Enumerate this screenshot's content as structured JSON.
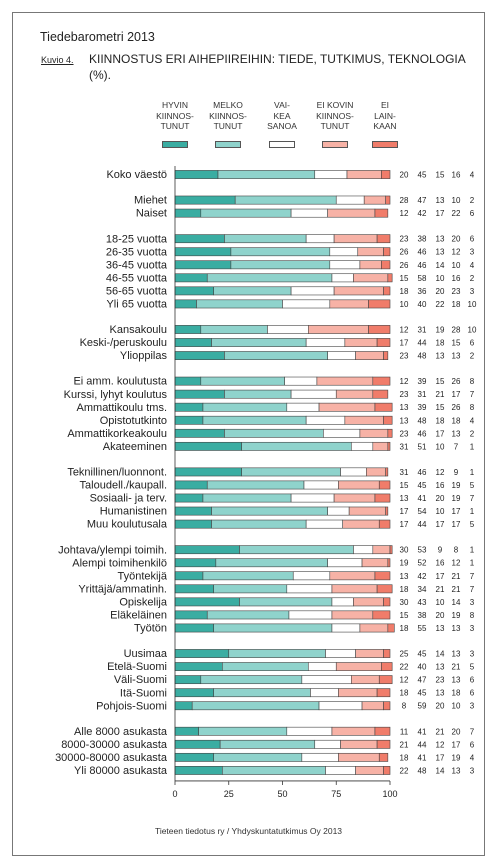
{
  "header": {
    "report_title": "Tiedebarometri 2013",
    "figure_label": "Kuvio 4.",
    "figure_title": "KIINNOSTUS ERI AIHEPIIREIHIN: TIEDE, TUTKIMUS, TEKNOLOGIA (%)."
  },
  "legend": [
    {
      "text": "HYVIN\nKIINNOS-\nTUNUT",
      "color": "#3aada2"
    },
    {
      "text": "MELKO\nKIINNOS-\nTUNUT",
      "color": "#8fd3cc"
    },
    {
      "text": "VAI-\nKEA\nSANOA",
      "color": "#ffffff"
    },
    {
      "text": "EI KOVIN\nKIINNOS-\nTUNUT",
      "color": "#f7b2a6"
    },
    {
      "text": "EI\nLAIN-\nKAAN",
      "color": "#f07c6a"
    }
  ],
  "source": "Tieteen tiedotus ry / Yhdyskuntatutkimus Oy 2013",
  "chart_data": {
    "type": "bar",
    "stacked": true,
    "orientation": "horizontal",
    "xlim": [
      0,
      100
    ],
    "xticks": [
      0,
      25,
      50,
      75,
      100
    ],
    "grid": false,
    "series_colors": [
      "#3aada2",
      "#8fd3cc",
      "#ffffff",
      "#f7b2a6",
      "#f07c6a"
    ],
    "groups": [
      {
        "rows": [
          {
            "label": "Koko väestö",
            "values": [
              20,
              45,
              15,
              16,
              4
            ]
          }
        ]
      },
      {
        "rows": [
          {
            "label": "Miehet",
            "values": [
              28,
              47,
              13,
              10,
              2
            ]
          },
          {
            "label": "Naiset",
            "values": [
              12,
              42,
              17,
              22,
              6
            ]
          }
        ]
      },
      {
        "rows": [
          {
            "label": "18-25 vuotta",
            "values": [
              23,
              38,
              13,
              20,
              6
            ]
          },
          {
            "label": "26-35 vuotta",
            "values": [
              26,
              46,
              13,
              12,
              3
            ]
          },
          {
            "label": "36-45 vuotta",
            "values": [
              26,
              46,
              14,
              10,
              4
            ]
          },
          {
            "label": "46-55 vuotta",
            "values": [
              15,
              58,
              10,
              16,
              2
            ]
          },
          {
            "label": "56-65 vuotta",
            "values": [
              18,
              36,
              20,
              23,
              3
            ]
          },
          {
            "label": "Yli 65 vuotta",
            "values": [
              10,
              40,
              22,
              18,
              10
            ]
          }
        ]
      },
      {
        "rows": [
          {
            "label": "Kansakoulu",
            "values": [
              12,
              31,
              19,
              28,
              10
            ]
          },
          {
            "label": "Keski-/peruskoulu",
            "values": [
              17,
              44,
              18,
              15,
              6
            ]
          },
          {
            "label": "Ylioppilas",
            "values": [
              23,
              48,
              13,
              13,
              2
            ]
          }
        ]
      },
      {
        "rows": [
          {
            "label": "Ei amm. koulutusta",
            "values": [
              12,
              39,
              15,
              26,
              8
            ]
          },
          {
            "label": "Kurssi, lyhyt koulutus",
            "values": [
              23,
              31,
              21,
              17,
              7
            ]
          },
          {
            "label": "Ammattikoulu tms.",
            "values": [
              13,
              39,
              15,
              26,
              8
            ]
          },
          {
            "label": "Opistotutkinto",
            "values": [
              13,
              48,
              18,
              18,
              4
            ]
          },
          {
            "label": "Ammattikorkeakoulu",
            "values": [
              23,
              46,
              17,
              13,
              2
            ]
          },
          {
            "label": "Akateeminen",
            "values": [
              31,
              51,
              10,
              7,
              1
            ]
          }
        ]
      },
      {
        "rows": [
          {
            "label": "Teknillinen/luonnont.",
            "values": [
              31,
              46,
              12,
              9,
              1
            ]
          },
          {
            "label": "Taloudell./kaupall.",
            "values": [
              15,
              45,
              16,
              19,
              5
            ]
          },
          {
            "label": "Sosiaali- ja terv.",
            "values": [
              13,
              41,
              20,
              19,
              7
            ]
          },
          {
            "label": "Humanistinen",
            "values": [
              17,
              54,
              10,
              17,
              1
            ]
          },
          {
            "label": "Muu koulutusala",
            "values": [
              17,
              44,
              17,
              17,
              5
            ]
          }
        ]
      },
      {
        "rows": [
          {
            "label": "Johtava/ylempi toimih.",
            "values": [
              30,
              53,
              9,
              8,
              1
            ]
          },
          {
            "label": "Alempi toimihenkilö",
            "values": [
              19,
              52,
              16,
              12,
              1
            ]
          },
          {
            "label": "Työntekijä",
            "values": [
              13,
              42,
              17,
              21,
              7
            ]
          },
          {
            "label": "Yrittäjä/ammatinh.",
            "values": [
              18,
              34,
              21,
              21,
              7
            ]
          },
          {
            "label": "Opiskelija",
            "values": [
              30,
              43,
              10,
              14,
              3
            ]
          },
          {
            "label": "Eläkeläinen",
            "values": [
              15,
              38,
              20,
              19,
              8
            ]
          },
          {
            "label": "Työtön",
            "values": [
              18,
              55,
              13,
              13,
              3
            ]
          }
        ]
      },
      {
        "rows": [
          {
            "label": "Uusimaa",
            "values": [
              25,
              45,
              14,
              13,
              3
            ]
          },
          {
            "label": "Etelä-Suomi",
            "values": [
              22,
              40,
              13,
              21,
              5
            ]
          },
          {
            "label": "Väli-Suomi",
            "values": [
              12,
              47,
              23,
              13,
              6
            ]
          },
          {
            "label": "Itä-Suomi",
            "values": [
              18,
              45,
              13,
              18,
              6
            ]
          },
          {
            "label": "Pohjois-Suomi",
            "values": [
              8,
              59,
              20,
              10,
              3
            ]
          }
        ]
      },
      {
        "rows": [
          {
            "label": "Alle 8000 asukasta",
            "values": [
              11,
              41,
              21,
              20,
              7
            ]
          },
          {
            "label": "8000-30000 asukasta",
            "values": [
              21,
              44,
              12,
              17,
              6
            ]
          },
          {
            "label": "30000-80000 asukasta",
            "values": [
              18,
              41,
              17,
              19,
              4
            ]
          },
          {
            "label": "Yli 80000 asukasta",
            "values": [
              22,
              48,
              14,
              13,
              3
            ]
          }
        ]
      }
    ]
  }
}
